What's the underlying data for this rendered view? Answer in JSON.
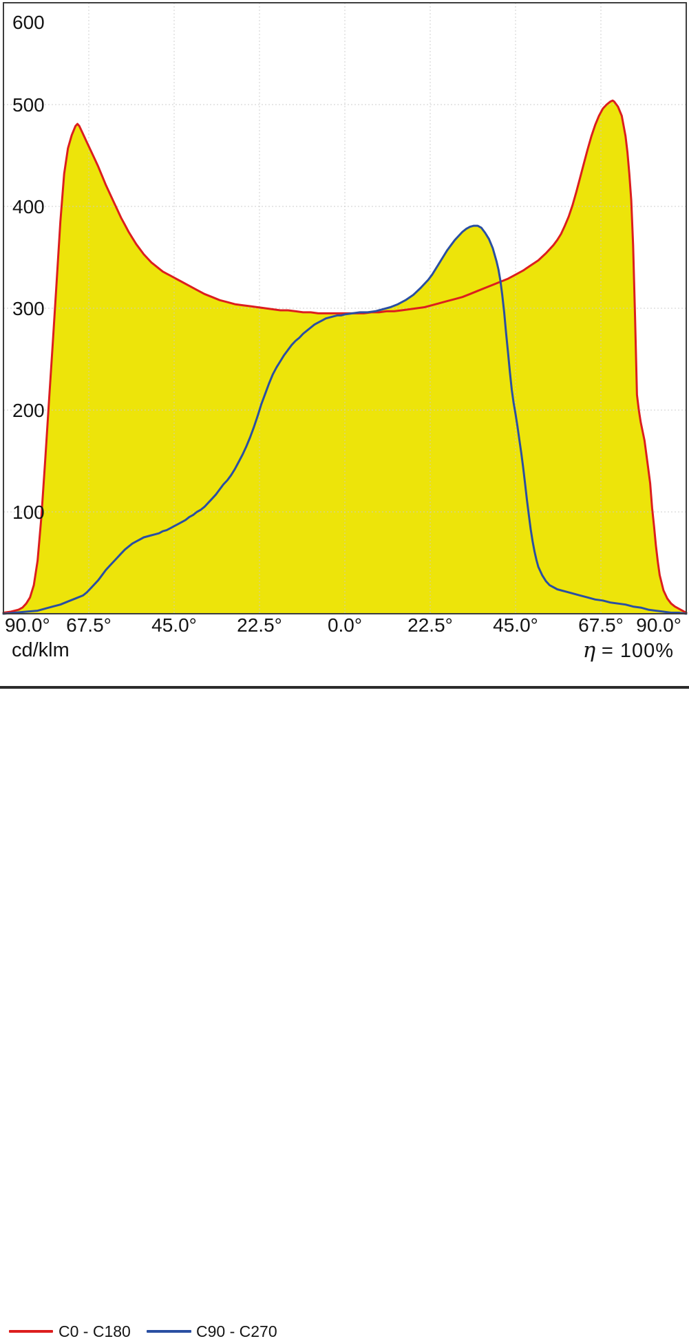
{
  "chart_data": {
    "type": "area",
    "title": "",
    "grid": true,
    "legend_position": "bottom",
    "background": "#ffffff",
    "frame_color": "#3d3d3d",
    "grid_color": "#c9c9c9",
    "text_color": "#141414",
    "fill_color": "#ede40a",
    "unit_label": "cd/klm",
    "efficiency": {
      "symbol": "η",
      "text": "= 100%"
    },
    "x_axis": {
      "range_deg": [
        -90,
        90
      ],
      "ticks": [
        {
          "angle": -90,
          "label": "90.0°",
          "align": "start"
        },
        {
          "angle": -67.5,
          "label": "67.5°",
          "align": "middle"
        },
        {
          "angle": -45,
          "label": "45.0°",
          "align": "middle"
        },
        {
          "angle": -22.5,
          "label": "22.5°",
          "align": "middle"
        },
        {
          "angle": 0,
          "label": "0.0°",
          "align": "middle"
        },
        {
          "angle": 22.5,
          "label": "22.5°",
          "align": "middle"
        },
        {
          "angle": 45,
          "label": "45.0°",
          "align": "middle"
        },
        {
          "angle": 67.5,
          "label": "67.5°",
          "align": "middle"
        },
        {
          "angle": 90,
          "label": "90.0°",
          "align": "end"
        }
      ]
    },
    "y_axis": {
      "range": [
        0,
        600
      ],
      "tick_values": [
        100,
        200,
        300,
        400,
        500,
        600
      ],
      "gridline_values": [
        100,
        200,
        300,
        400,
        500
      ]
    },
    "series": [
      {
        "name": "C0 - C180",
        "color": "#dc1e1e",
        "points": [
          [
            -90,
            1
          ],
          [
            -88,
            2
          ],
          [
            -86,
            4
          ],
          [
            -85,
            6
          ],
          [
            -84,
            10
          ],
          [
            -83,
            16
          ],
          [
            -82,
            28
          ],
          [
            -81,
            52
          ],
          [
            -80,
            95
          ],
          [
            -79,
            150
          ],
          [
            -78,
            208
          ],
          [
            -77,
            265
          ],
          [
            -76,
            325
          ],
          [
            -75,
            385
          ],
          [
            -74,
            432
          ],
          [
            -73,
            457
          ],
          [
            -72,
            470
          ],
          [
            -71,
            479
          ],
          [
            -70.5,
            481
          ],
          [
            -70,
            479
          ],
          [
            -69,
            471
          ],
          [
            -68,
            463
          ],
          [
            -67,
            455
          ],
          [
            -66,
            447
          ],
          [
            -65,
            439
          ],
          [
            -64,
            430
          ],
          [
            -63,
            421
          ],
          [
            -62,
            413
          ],
          [
            -61,
            405
          ],
          [
            -60,
            397
          ],
          [
            -59,
            389
          ],
          [
            -58,
            382
          ],
          [
            -57,
            375
          ],
          [
            -56,
            369
          ],
          [
            -55,
            363
          ],
          [
            -54,
            358
          ],
          [
            -53,
            353
          ],
          [
            -52,
            349
          ],
          [
            -51,
            345
          ],
          [
            -50,
            342
          ],
          [
            -49,
            339
          ],
          [
            -48,
            336
          ],
          [
            -47,
            334
          ],
          [
            -46,
            332
          ],
          [
            -45,
            330
          ],
          [
            -43,
            326
          ],
          [
            -41,
            322
          ],
          [
            -39,
            318
          ],
          [
            -37,
            314
          ],
          [
            -35,
            311
          ],
          [
            -33,
            308
          ],
          [
            -31,
            306
          ],
          [
            -29,
            304
          ],
          [
            -27,
            303
          ],
          [
            -25,
            302
          ],
          [
            -23,
            301
          ],
          [
            -21,
            300
          ],
          [
            -19,
            299
          ],
          [
            -17,
            298
          ],
          [
            -15,
            298
          ],
          [
            -13,
            297
          ],
          [
            -11,
            296
          ],
          [
            -9,
            296
          ],
          [
            -7,
            295
          ],
          [
            -5,
            295
          ],
          [
            -2,
            295
          ],
          [
            2,
            295
          ],
          [
            5,
            295
          ],
          [
            7,
            296
          ],
          [
            9,
            296
          ],
          [
            11,
            297
          ],
          [
            13,
            297
          ],
          [
            15,
            298
          ],
          [
            17,
            299
          ],
          [
            19,
            300
          ],
          [
            21,
            301
          ],
          [
            23,
            303
          ],
          [
            25,
            305
          ],
          [
            27,
            307
          ],
          [
            29,
            309
          ],
          [
            31,
            311
          ],
          [
            33,
            314
          ],
          [
            35,
            317
          ],
          [
            37,
            320
          ],
          [
            39,
            323
          ],
          [
            41,
            326
          ],
          [
            43,
            329
          ],
          [
            45,
            333
          ],
          [
            47,
            337
          ],
          [
            49,
            342
          ],
          [
            51,
            347
          ],
          [
            53,
            354
          ],
          [
            55,
            362
          ],
          [
            56,
            367
          ],
          [
            57,
            373
          ],
          [
            58,
            381
          ],
          [
            59,
            390
          ],
          [
            60,
            401
          ],
          [
            61,
            414
          ],
          [
            62,
            428
          ],
          [
            63,
            442
          ],
          [
            64,
            456
          ],
          [
            65,
            469
          ],
          [
            66,
            480
          ],
          [
            67,
            489
          ],
          [
            68,
            496
          ],
          [
            69,
            500
          ],
          [
            70,
            503
          ],
          [
            70.6,
            504
          ],
          [
            71,
            503
          ],
          [
            72,
            498
          ],
          [
            73,
            489
          ],
          [
            74,
            469
          ],
          [
            74.5,
            453
          ],
          [
            75,
            432
          ],
          [
            75.5,
            406
          ],
          [
            76,
            362
          ],
          [
            76.5,
            292
          ],
          [
            77,
            215
          ],
          [
            77.5,
            200
          ],
          [
            78,
            188
          ],
          [
            79,
            170
          ],
          [
            80,
            142
          ],
          [
            80.5,
            128
          ],
          [
            81,
            104
          ],
          [
            81.5,
            86
          ],
          [
            82,
            67
          ],
          [
            82.5,
            51
          ],
          [
            83,
            38
          ],
          [
            84,
            23
          ],
          [
            85,
            15
          ],
          [
            86,
            10
          ],
          [
            87,
            7
          ],
          [
            88,
            5
          ],
          [
            89,
            3
          ],
          [
            90,
            1
          ]
        ]
      },
      {
        "name": "C90 - C270",
        "color": "#2a4fa2",
        "points": [
          [
            -90,
            0
          ],
          [
            -87,
            1
          ],
          [
            -84,
            2
          ],
          [
            -81,
            3
          ],
          [
            -79,
            5
          ],
          [
            -77,
            7
          ],
          [
            -75,
            9
          ],
          [
            -73,
            12
          ],
          [
            -71,
            15
          ],
          [
            -69,
            18
          ],
          [
            -68,
            21
          ],
          [
            -67,
            25
          ],
          [
            -66,
            29
          ],
          [
            -65,
            33
          ],
          [
            -64,
            38
          ],
          [
            -63,
            43
          ],
          [
            -62,
            47
          ],
          [
            -61,
            51
          ],
          [
            -60,
            55
          ],
          [
            -59,
            59
          ],
          [
            -58,
            63
          ],
          [
            -57,
            66
          ],
          [
            -56,
            69
          ],
          [
            -55,
            71
          ],
          [
            -54,
            73
          ],
          [
            -53,
            75
          ],
          [
            -52,
            76
          ],
          [
            -51,
            77
          ],
          [
            -50,
            78
          ],
          [
            -49,
            79
          ],
          [
            -48,
            81
          ],
          [
            -47,
            82
          ],
          [
            -46,
            84
          ],
          [
            -45,
            86
          ],
          [
            -44,
            88
          ],
          [
            -43,
            90
          ],
          [
            -42,
            92
          ],
          [
            -41,
            95
          ],
          [
            -40,
            97
          ],
          [
            -39,
            100
          ],
          [
            -38,
            102
          ],
          [
            -37,
            105
          ],
          [
            -36,
            109
          ],
          [
            -35,
            113
          ],
          [
            -34,
            117
          ],
          [
            -33,
            122
          ],
          [
            -32,
            127
          ],
          [
            -31,
            131
          ],
          [
            -30,
            136
          ],
          [
            -29,
            142
          ],
          [
            -28,
            149
          ],
          [
            -27,
            156
          ],
          [
            -26,
            164
          ],
          [
            -25,
            173
          ],
          [
            -24,
            183
          ],
          [
            -23,
            194
          ],
          [
            -22,
            206
          ],
          [
            -21,
            216
          ],
          [
            -20,
            226
          ],
          [
            -19,
            235
          ],
          [
            -18,
            242
          ],
          [
            -17,
            248
          ],
          [
            -16,
            254
          ],
          [
            -15,
            259
          ],
          [
            -14,
            264
          ],
          [
            -13,
            268
          ],
          [
            -12,
            271
          ],
          [
            -11,
            275
          ],
          [
            -10,
            278
          ],
          [
            -9,
            281
          ],
          [
            -8,
            284
          ],
          [
            -7,
            286
          ],
          [
            -6,
            288
          ],
          [
            -5,
            290
          ],
          [
            -4,
            291
          ],
          [
            -3,
            292
          ],
          [
            -2,
            293
          ],
          [
            -1,
            293
          ],
          [
            0,
            294
          ],
          [
            2,
            295
          ],
          [
            4,
            296
          ],
          [
            6,
            296
          ],
          [
            8,
            297
          ],
          [
            10,
            299
          ],
          [
            12,
            301
          ],
          [
            14,
            304
          ],
          [
            16,
            308
          ],
          [
            18,
            313
          ],
          [
            20,
            320
          ],
          [
            21,
            324
          ],
          [
            22,
            328
          ],
          [
            23,
            333
          ],
          [
            24,
            339
          ],
          [
            25,
            345
          ],
          [
            26,
            351
          ],
          [
            27,
            357
          ],
          [
            28,
            362
          ],
          [
            29,
            367
          ],
          [
            30,
            371
          ],
          [
            31,
            375
          ],
          [
            32,
            378
          ],
          [
            33,
            380
          ],
          [
            34,
            381
          ],
          [
            35,
            381
          ],
          [
            36,
            379
          ],
          [
            37,
            374
          ],
          [
            38,
            368
          ],
          [
            39,
            359
          ],
          [
            40,
            346
          ],
          [
            40.5,
            338
          ],
          [
            41,
            327
          ],
          [
            41.5,
            313
          ],
          [
            42,
            296
          ],
          [
            42.5,
            276
          ],
          [
            43,
            257
          ],
          [
            43.5,
            238
          ],
          [
            44,
            220
          ],
          [
            44.5,
            207
          ],
          [
            45,
            196
          ],
          [
            45.5,
            184
          ],
          [
            46,
            171
          ],
          [
            46.5,
            158
          ],
          [
            47,
            144
          ],
          [
            47.5,
            128
          ],
          [
            48,
            112
          ],
          [
            48.5,
            97
          ],
          [
            49,
            83
          ],
          [
            49.5,
            71
          ],
          [
            50,
            61
          ],
          [
            50.5,
            53
          ],
          [
            51,
            46
          ],
          [
            52,
            38
          ],
          [
            53,
            32
          ],
          [
            54,
            28
          ],
          [
            55,
            26
          ],
          [
            56,
            24
          ],
          [
            57,
            23
          ],
          [
            58,
            22
          ],
          [
            59,
            21
          ],
          [
            60,
            20
          ],
          [
            62,
            18
          ],
          [
            64,
            16
          ],
          [
            66,
            14
          ],
          [
            68,
            13
          ],
          [
            70,
            11
          ],
          [
            72,
            10
          ],
          [
            74,
            9
          ],
          [
            76,
            7
          ],
          [
            78,
            6
          ],
          [
            80,
            4
          ],
          [
            82,
            3
          ],
          [
            84,
            2
          ],
          [
            86,
            1
          ],
          [
            88,
            1
          ],
          [
            90,
            0
          ]
        ]
      }
    ]
  }
}
